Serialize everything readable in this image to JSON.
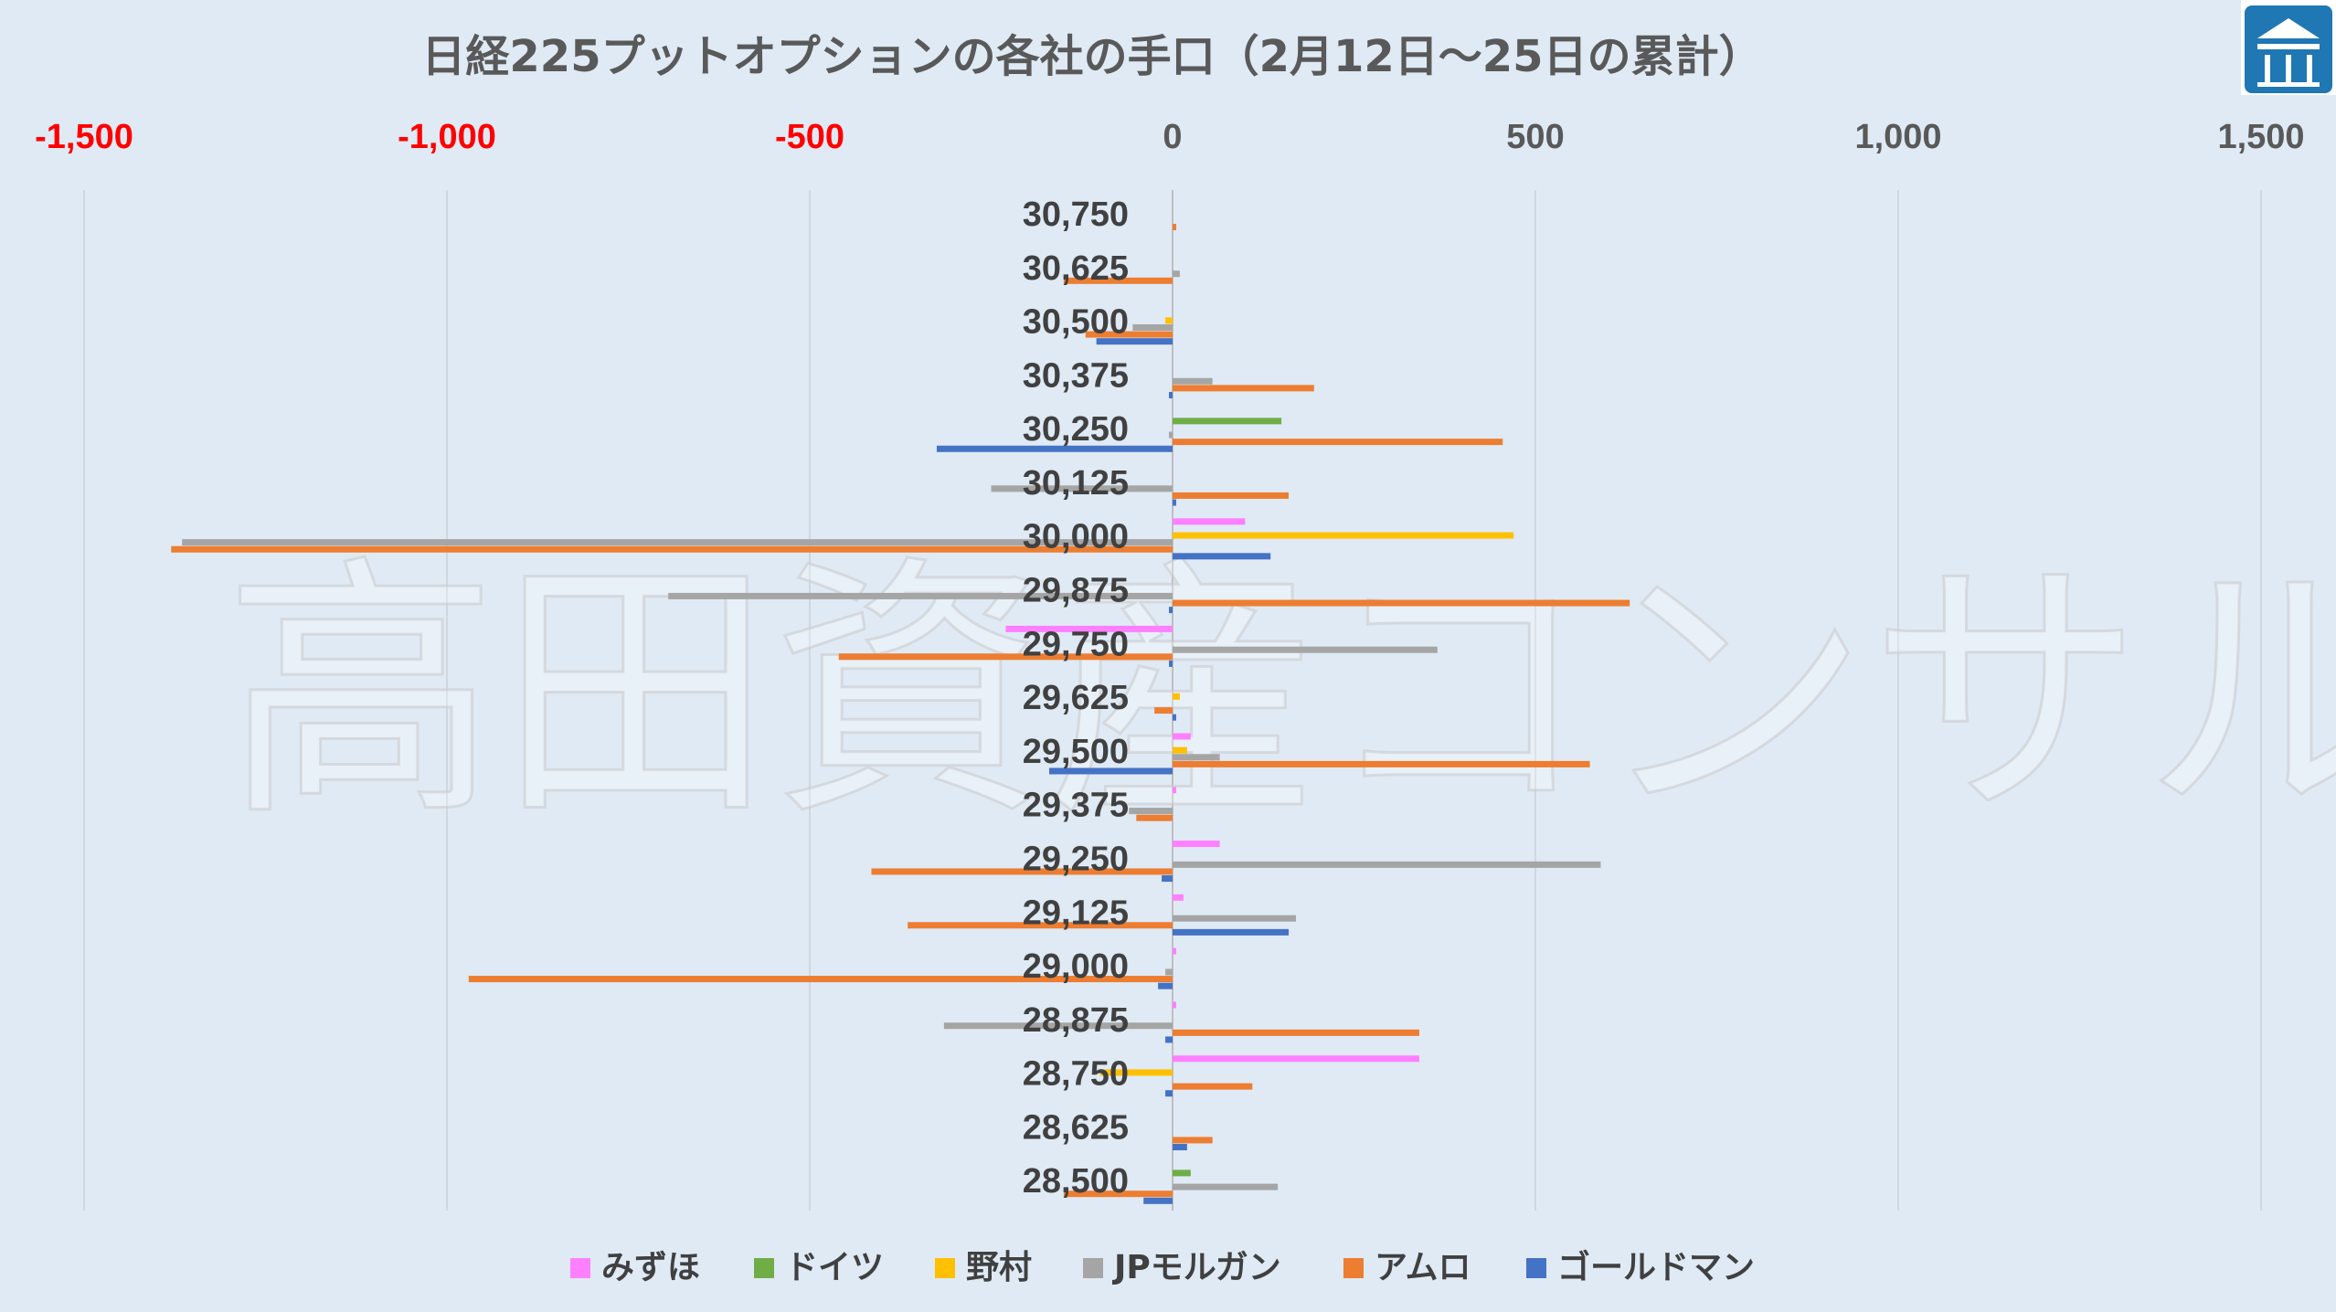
{
  "chart_data": {
    "type": "bar",
    "orientation": "horizontal",
    "title": "日経225プットオプションの各社の手口（2月12日～25日の累計）",
    "watermark": "高田資産コンサル",
    "xlim": [
      -1500,
      1500
    ],
    "xticks": [
      -1500,
      -1000,
      -500,
      0,
      500,
      1000,
      1500
    ],
    "xtick_labels": [
      "-1,500",
      "-1,000",
      "-500",
      "0",
      "500",
      "1,000",
      "1,500"
    ],
    "negative_tick_color": "#ff0000",
    "positive_tick_color": "#595959",
    "grid": true,
    "legend_position": "bottom",
    "categories": [
      "30,750",
      "30,625",
      "30,500",
      "30,375",
      "30,250",
      "30,125",
      "30,000",
      "29,875",
      "29,750",
      "29,625",
      "29,500",
      "29,375",
      "29,250",
      "29,125",
      "29,000",
      "28,875",
      "28,750",
      "28,625",
      "28,500"
    ],
    "series": [
      {
        "name": "みずほ",
        "color": "#ff80ff",
        "values": [
          0,
          0,
          0,
          0,
          0,
          0,
          100,
          0,
          -230,
          0,
          25,
          5,
          65,
          15,
          5,
          5,
          340,
          0,
          0
        ]
      },
      {
        "name": "ドイツ",
        "color": "#70ad47",
        "values": [
          0,
          0,
          0,
          0,
          150,
          0,
          0,
          0,
          0,
          0,
          0,
          0,
          0,
          0,
          0,
          0,
          0,
          0,
          25
        ]
      },
      {
        "name": "野村",
        "color": "#ffc000",
        "values": [
          0,
          0,
          -10,
          0,
          0,
          0,
          470,
          0,
          0,
          10,
          20,
          0,
          0,
          0,
          0,
          0,
          -100,
          0,
          0
        ]
      },
      {
        "name": "JPモルガン",
        "color": "#a5a5a5",
        "values": [
          0,
          10,
          -55,
          55,
          -5,
          -250,
          -1365,
          -695,
          365,
          0,
          65,
          -60,
          590,
          170,
          -10,
          -315,
          0,
          0,
          145
        ]
      },
      {
        "name": "アムロ",
        "color": "#ed7d31",
        "values": [
          5,
          -150,
          -120,
          195,
          455,
          160,
          -1380,
          630,
          -460,
          -25,
          575,
          -50,
          -415,
          -365,
          -970,
          340,
          110,
          55,
          -150
        ]
      },
      {
        "name": "ゴールドマン",
        "color": "#4472c4",
        "values": [
          0,
          0,
          -105,
          -5,
          -325,
          5,
          135,
          -5,
          -5,
          5,
          -170,
          0,
          -15,
          160,
          -20,
          -10,
          -10,
          20,
          -40
        ]
      }
    ]
  },
  "logo": {
    "name": "takada-shisan-logo",
    "bg_color": "#1f77b4"
  }
}
